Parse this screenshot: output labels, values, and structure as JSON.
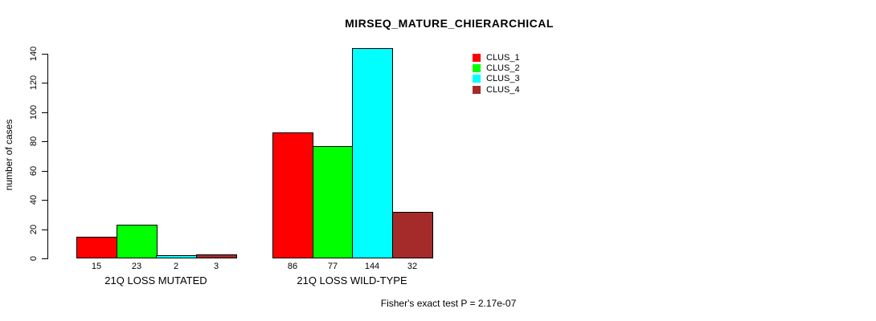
{
  "chart_data": {
    "type": "bar",
    "title": "MIRSEQ_MATURE_CHIERARCHICAL",
    "ylabel": "number of cases",
    "xlabel": "",
    "ylim": [
      0,
      140
    ],
    "yticks": [
      0,
      20,
      40,
      60,
      80,
      100,
      120,
      140
    ],
    "grid": false,
    "legend_position": "top-right-inside",
    "categories": [
      "21Q LOSS MUTATED",
      "21Q LOSS WILD-TYPE"
    ],
    "series": [
      {
        "name": "CLUS_1",
        "color": "#FF0000",
        "values": [
          15,
          86
        ]
      },
      {
        "name": "CLUS_2",
        "color": "#00FF00",
        "values": [
          23,
          77
        ]
      },
      {
        "name": "CLUS_3",
        "color": "#00FFFF",
        "values": [
          2,
          144
        ]
      },
      {
        "name": "CLUS_4",
        "color": "#A52A2A",
        "values": [
          3,
          32
        ]
      }
    ],
    "bar_value_labels_shown": true,
    "caption": "Fisher's exact test P = 2.17e-07",
    "colors": {
      "axis": "#000000",
      "text": "#000000",
      "background": "#FFFFFF"
    }
  }
}
